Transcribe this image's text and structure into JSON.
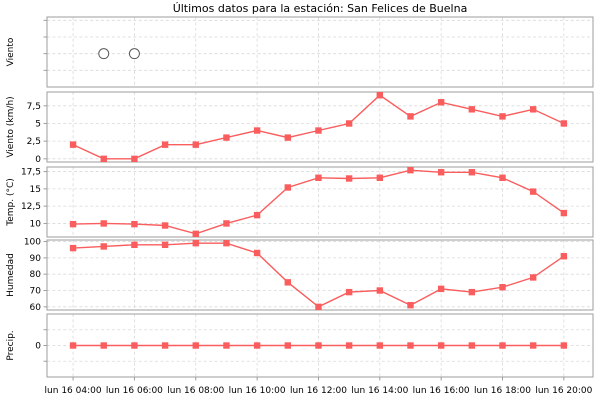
{
  "title": "Últimos datos para la estación: San Felices de Buelna",
  "chart_data": {
    "type": "line",
    "title": "Últimos datos para la estación: San Felices de Buelna",
    "x": {
      "hours": [
        4,
        5,
        6,
        7,
        8,
        9,
        10,
        11,
        12,
        13,
        14,
        15,
        16,
        17,
        18,
        19,
        20
      ],
      "tick_hours": [
        4,
        6,
        8,
        10,
        12,
        14,
        16,
        18,
        20
      ],
      "tick_labels": [
        "lun 16 04:00",
        "lun 16 06:00",
        "lun 16 08:00",
        "lun 16 10:00",
        "lun 16 12:00",
        "lun 16 14:00",
        "lun 16 16:00",
        "lun 16 18:00",
        "lun 16 20:00"
      ],
      "xlim": [
        3.15,
        20.95
      ]
    },
    "panels": [
      {
        "id": "viento-dir",
        "ylabel": "Viento",
        "type": "calm",
        "ylim": [
          0,
          4.2
        ],
        "yticks": [
          1,
          2,
          3,
          4
        ],
        "ytick_labels": [
          "",
          "",
          "",
          ""
        ],
        "calm_value": 2,
        "calm_hours": [
          5,
          6
        ]
      },
      {
        "id": "viento-vel",
        "ylabel": "Viento (km/h)",
        "type": "series",
        "ylim": [
          -0.45,
          9.45
        ],
        "yticks": [
          0,
          2.5,
          5,
          7.5
        ],
        "ytick_labels": [
          "0",
          "2,5",
          "5",
          "7,5"
        ],
        "values": [
          2,
          0,
          0,
          2,
          2,
          3,
          4,
          3,
          4,
          5,
          9,
          6,
          8,
          7,
          6,
          7,
          5
        ]
      },
      {
        "id": "temp",
        "ylabel": "Temp. (°C)",
        "type": "series",
        "ylim": [
          8.04,
          18.16
        ],
        "yticks": [
          10,
          12.5,
          15,
          17.5
        ],
        "ytick_labels": [
          "10",
          "12,5",
          "15",
          "17,5"
        ],
        "values": [
          9.9,
          10,
          9.9,
          9.7,
          8.5,
          10,
          11.2,
          15.2,
          16.6,
          16.5,
          16.6,
          17.7,
          17.4,
          17.4,
          16.6,
          14.6,
          11.5
        ]
      },
      {
        "id": "humedad",
        "ylabel": "Humedad",
        "type": "series",
        "ylim": [
          58.05,
          100.95
        ],
        "yticks": [
          60,
          70,
          80,
          90,
          100
        ],
        "ytick_labels": [
          "60",
          "70",
          "80",
          "90",
          "100"
        ],
        "values": [
          96,
          97,
          98,
          98,
          99,
          99,
          93,
          75,
          60,
          69,
          70,
          61,
          71,
          69,
          72,
          78,
          91
        ]
      },
      {
        "id": "precip",
        "ylabel": "Precip.",
        "type": "series",
        "ylim": [
          -1,
          1
        ],
        "yticks": [
          -0.5,
          0,
          0.5
        ],
        "ytick_labels": [
          "",
          "0",
          ""
        ],
        "values": [
          0,
          0,
          0,
          0,
          0,
          0,
          0,
          0,
          0,
          0,
          0,
          0,
          0,
          0,
          0,
          0,
          0
        ]
      }
    ],
    "colors": {
      "series": "#fa5d5d",
      "calm_stroke": "#5a5a5a",
      "grid": "#d9d9d9",
      "border": "#9e9e9e",
      "text": "#000000"
    },
    "legend": "none",
    "grid": true
  }
}
